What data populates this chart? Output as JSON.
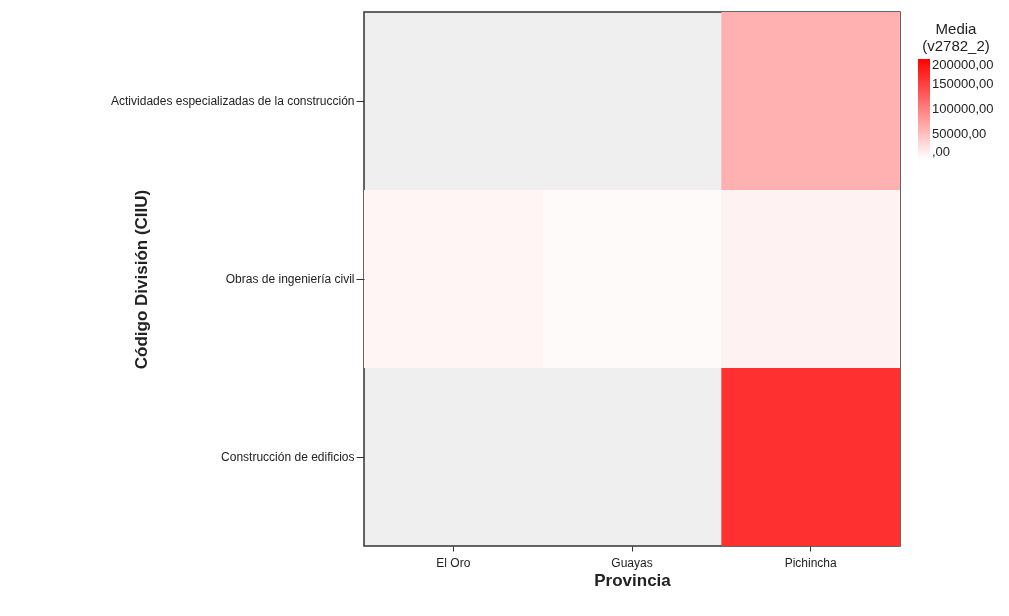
{
  "chart_data": {
    "type": "heatmap",
    "xlabel": "Provincia",
    "ylabel": "Código División (CIIU)",
    "legend_title": "Media (v2782_2)",
    "categories": [
      "El Oro",
      "Guayas",
      "Pichincha"
    ],
    "y_categories": [
      "Actividades especializadas de la construcción",
      "Obras de ingeniería civil",
      "Construcción de edificios"
    ],
    "cells": [
      [
        null,
        null,
        62000
      ],
      [
        8000,
        4000,
        10000
      ],
      [
        null,
        null,
        162000
      ]
    ],
    "clim": [
      0,
      200000
    ],
    "cticks": [
      {
        "value": 200000,
        "label": "200000,00"
      },
      {
        "value": 150000,
        "label": "150000,00"
      },
      {
        "value": 100000,
        "label": "100000,00"
      },
      {
        "value": 50000,
        "label": "50000,00"
      },
      {
        "value": 0,
        "label": ",00"
      }
    ]
  }
}
